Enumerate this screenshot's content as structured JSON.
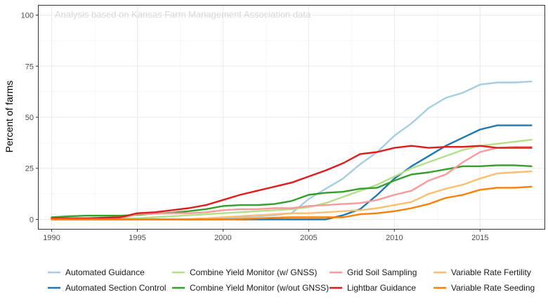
{
  "chart_data": {
    "type": "line",
    "annotation": "Analysis based on Kansas Farm Management Association data",
    "xlabel": "",
    "ylabel": "Percent of farms",
    "xlim": [
      1989.2,
      2018.8
    ],
    "ylim": [
      -5,
      105
    ],
    "x_ticks": [
      1990,
      1995,
      2000,
      2005,
      2010,
      2015
    ],
    "y_ticks": [
      0,
      25,
      50,
      75,
      100
    ],
    "grid": true,
    "legend_position": "bottom",
    "x": [
      1990,
      1991,
      1992,
      1993,
      1994,
      1995,
      1996,
      1997,
      1998,
      1999,
      2000,
      2001,
      2002,
      2003,
      2004,
      2005,
      2006,
      2007,
      2008,
      2009,
      2010,
      2011,
      2012,
      2013,
      2014,
      2015,
      2016,
      2017,
      2018
    ],
    "series": [
      {
        "name": "Automated Guidance",
        "color": "#a6cee3",
        "values": [
          0,
          0,
          0,
          0,
          0,
          0,
          0,
          0,
          0,
          0,
          0.5,
          1,
          1.5,
          2,
          3,
          10,
          15,
          20,
          27,
          33,
          41,
          47,
          54.5,
          59.5,
          62,
          66,
          67,
          67,
          67.5
        ]
      },
      {
        "name": "Automated Section Control",
        "color": "#1f78b4",
        "values": [
          0,
          0,
          0,
          0,
          0,
          0,
          0,
          0,
          0,
          0,
          0,
          0,
          0,
          0,
          0,
          0,
          0,
          2,
          5,
          12,
          20,
          26,
          31,
          36,
          40,
          44,
          46,
          46,
          46
        ]
      },
      {
        "name": "Combine Yield Monitor (w/ GNSS)",
        "color": "#b2df8a",
        "values": [
          0.5,
          0.5,
          0.5,
          0.5,
          0.5,
          0.5,
          1,
          1.5,
          2,
          2.5,
          3,
          3.5,
          4,
          4.5,
          5,
          6,
          8,
          11,
          14,
          17,
          21,
          25,
          28,
          31,
          34,
          36,
          37,
          38,
          39
        ]
      },
      {
        "name": "Combine Yield Monitor (w/out GNSS)",
        "color": "#33a02c",
        "values": [
          1,
          1.5,
          1.8,
          1.8,
          1.8,
          2.2,
          2.8,
          3.3,
          4,
          5,
          6.5,
          7,
          7,
          7.5,
          9,
          12,
          13,
          13.5,
          15,
          15.5,
          19,
          22,
          23,
          24.5,
          26,
          26,
          26.5,
          26.5,
          26
        ]
      },
      {
        "name": "Grid Soil Sampling",
        "color": "#fb9a99",
        "values": [
          0.5,
          0.5,
          0.5,
          0.5,
          0.5,
          2.5,
          2.8,
          3,
          3,
          3.5,
          4.5,
          5,
          5,
          5.5,
          5.5,
          6.5,
          7,
          7.5,
          8,
          9.5,
          12,
          14,
          19,
          22,
          28,
          33,
          35,
          35.5,
          35.5
        ]
      },
      {
        "name": "Lightbar Guidance",
        "color": "#e31a1c",
        "values": [
          0.5,
          0.5,
          0.5,
          0.8,
          1,
          3,
          3.5,
          4.5,
          5.5,
          7,
          9.5,
          12,
          14,
          16,
          18,
          21,
          24,
          27.5,
          32,
          33,
          35,
          36,
          35,
          35.5,
          35.5,
          36,
          35,
          35,
          35
        ]
      },
      {
        "name": "Variable Rate Fertility",
        "color": "#fdbf6f",
        "values": [
          0,
          0,
          0,
          0,
          0,
          0,
          0,
          0,
          0.2,
          0.5,
          1,
          1.5,
          2,
          2.5,
          3,
          3,
          3.5,
          4,
          4.5,
          5.5,
          7,
          8.5,
          12.5,
          15,
          17,
          20,
          22.5,
          23,
          23.5
        ]
      },
      {
        "name": "Variable Rate Seeding",
        "color": "#ff7f00",
        "values": [
          0,
          0,
          0,
          0,
          0,
          0,
          0,
          0,
          0,
          0,
          0,
          0.2,
          0.5,
          0.8,
          1,
          1,
          1,
          1,
          2.5,
          3,
          4,
          5.5,
          7.5,
          10.5,
          12,
          14.5,
          15.5,
          15.5,
          16
        ]
      }
    ]
  }
}
